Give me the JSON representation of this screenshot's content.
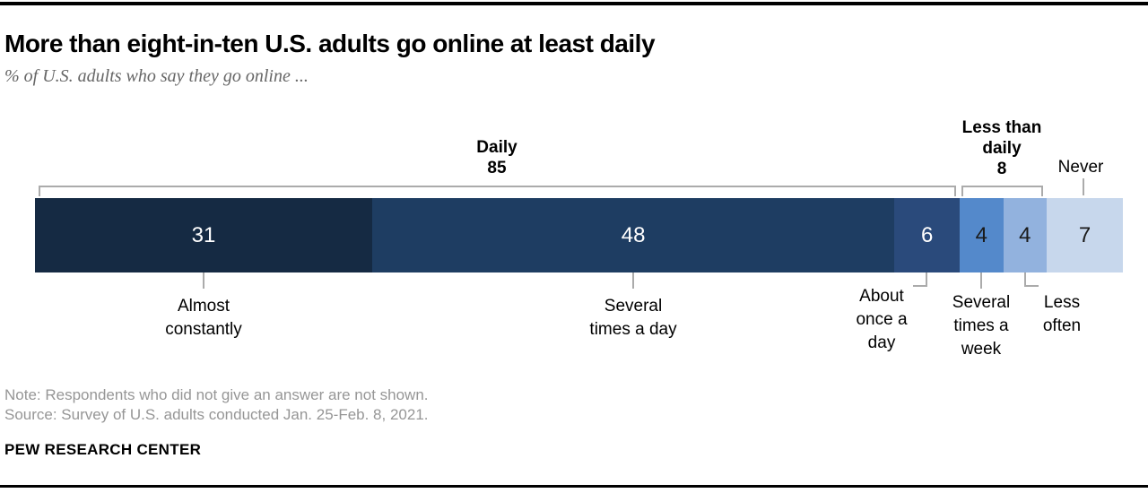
{
  "header": {
    "title": "More than eight-in-ten U.S. adults go online at least daily",
    "subtitle": "% of U.S. adults who say they go online ..."
  },
  "chart_data": {
    "type": "bar",
    "subtype": "horizontal-stacked-100-percent",
    "title": "More than eight-in-ten U.S. adults go online at least daily",
    "units": "% of U.S. adults",
    "axis_range": [
      0,
      100
    ],
    "grid": false,
    "segments": [
      {
        "label": "Almost constantly",
        "display": "Almost\nconstantly",
        "value": 31,
        "color": "#152A43",
        "value_color": "#FFFFFF"
      },
      {
        "label": "Several times a day",
        "display": "Several\ntimes a day",
        "value": 48,
        "color": "#1E3D62",
        "value_color": "#FFFFFF"
      },
      {
        "label": "About once a day",
        "display": "About\nonce a\nday",
        "value": 6,
        "color": "#2A4A7B",
        "value_color": "#FFFFFF"
      },
      {
        "label": "Several times a week",
        "display": "Several\ntimes a\nweek",
        "value": 4,
        "color": "#5489CB",
        "value_color": "#1A1A1A"
      },
      {
        "label": "Less often",
        "display": "Less\noften",
        "value": 4,
        "color": "#92B2DE",
        "value_color": "#1A1A1A"
      },
      {
        "label": "Never",
        "display": "Never",
        "value": 7,
        "color": "#C7D7EC",
        "value_color": "#1A1A1A"
      }
    ],
    "groups": [
      {
        "label": "Daily",
        "display": "Daily",
        "value": 85,
        "spans": [
          "Almost constantly",
          "Several times a day",
          "About once a day"
        ]
      },
      {
        "label": "Less than daily",
        "display": "Less than\ndaily",
        "value": 8,
        "spans": [
          "Several times a week",
          "Less often"
        ]
      },
      {
        "label": "Never",
        "display": "Never",
        "spans": [
          "Never"
        ]
      }
    ],
    "leader_line_color": "#ABABAB",
    "rule_color": "#000000",
    "note_text_color": "#969696",
    "subtitle_text_color": "#666666"
  },
  "footer": {
    "note": "Note: Respondents who did not give an answer are not shown.",
    "source": "Source: Survey of U.S. adults conducted Jan. 25-Feb. 8, 2021.",
    "brand": "PEW RESEARCH CENTER"
  }
}
